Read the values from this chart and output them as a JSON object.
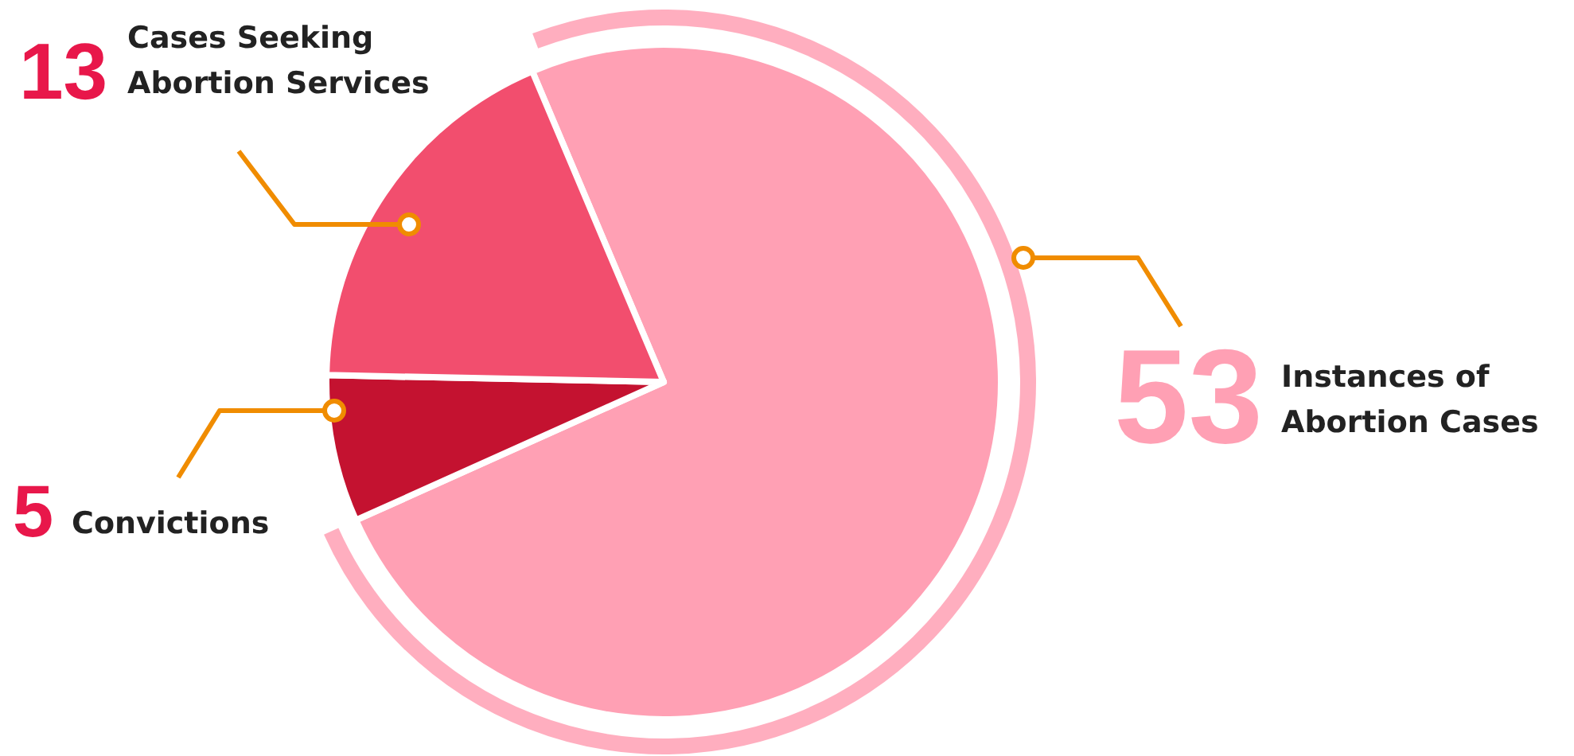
{
  "chart_data": {
    "type": "pie",
    "categories": [
      "Instances of Abortion Cases",
      "Convictions",
      "Cases Seeking Abortion Services"
    ],
    "values": [
      53,
      5,
      13
    ],
    "colors": [
      "#ffa0b4",
      "#c41230",
      "#f24e6e"
    ],
    "data_labels": true
  }
}
